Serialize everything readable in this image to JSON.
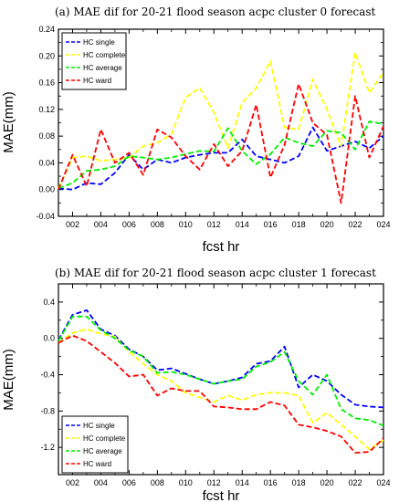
{
  "chart_data": [
    {
      "type": "line",
      "title": "(a) MAE dif for 20-21 flood season acpc cluster 0 forecast",
      "xlabel": "fcst hr",
      "ylabel": "MAE(mm)",
      "x": [
        1,
        2,
        3,
        4,
        5,
        6,
        7,
        8,
        9,
        10,
        11,
        12,
        13,
        14,
        15,
        16,
        17,
        18,
        19,
        20,
        21,
        22,
        23,
        24
      ],
      "xticks": [
        "002",
        "004",
        "006",
        "008",
        "010",
        "012",
        "014",
        "016",
        "018",
        "020",
        "022",
        "024"
      ],
      "ylim": [
        -0.04,
        0.24
      ],
      "yticks": [
        "-0.04",
        "0.00",
        "0.04",
        "0.08",
        "0.12",
        "0.16",
        "0.20",
        "0.24"
      ],
      "ytick_values": [
        -0.04,
        0.0,
        0.04,
        0.08,
        0.12,
        0.16,
        0.2,
        0.24
      ],
      "legend_position": "top-left",
      "series": [
        {
          "name": "HC single",
          "color": "#0000ff",
          "values": [
            0.002,
            0.0,
            0.01,
            0.008,
            0.025,
            0.052,
            0.03,
            0.045,
            0.04,
            0.048,
            0.052,
            0.055,
            0.055,
            0.075,
            0.05,
            0.045,
            0.04,
            0.05,
            0.093,
            0.058,
            0.065,
            0.072,
            0.062,
            0.08
          ]
        },
        {
          "name": "HC complete",
          "color": "#ffff00",
          "values": [
            0.002,
            0.048,
            0.05,
            0.043,
            0.045,
            0.048,
            0.065,
            0.07,
            0.083,
            0.138,
            0.152,
            0.115,
            0.062,
            0.13,
            0.152,
            0.192,
            0.093,
            0.09,
            0.165,
            0.12,
            0.065,
            0.205,
            0.145,
            0.175
          ]
        },
        {
          "name": "HC average",
          "color": "#00ee00",
          "values": [
            0.002,
            0.01,
            0.028,
            0.03,
            0.035,
            0.05,
            0.048,
            0.045,
            0.048,
            0.053,
            0.058,
            0.057,
            0.092,
            0.058,
            0.038,
            0.053,
            0.078,
            0.07,
            0.065,
            0.088,
            0.085,
            0.06,
            0.102,
            0.098
          ]
        },
        {
          "name": "HC ward",
          "color": "#ff0000",
          "values": [
            0.0,
            0.052,
            0.005,
            0.09,
            0.04,
            0.055,
            0.022,
            0.09,
            0.078,
            0.05,
            0.03,
            0.068,
            0.035,
            0.058,
            0.127,
            0.018,
            0.067,
            0.158,
            0.1,
            0.082,
            -0.02,
            0.14,
            0.048,
            0.095
          ]
        }
      ]
    },
    {
      "type": "line",
      "title": "(b) MAE dif for 20-21 flood season acpc cluster 1 forecast",
      "xlabel": "fcst hr",
      "ylabel": "MAE(mm)",
      "x": [
        1,
        2,
        3,
        4,
        5,
        6,
        7,
        8,
        9,
        10,
        11,
        12,
        13,
        14,
        15,
        16,
        17,
        18,
        19,
        20,
        21,
        22,
        23,
        24
      ],
      "xticks": [
        "002",
        "004",
        "006",
        "008",
        "010",
        "012",
        "014",
        "016",
        "018",
        "020",
        "022",
        "024"
      ],
      "ylim": [
        -1.5,
        0.6
      ],
      "yticks": [
        "-1.2",
        "-0.8",
        "-0.4",
        "0.0",
        "0.4"
      ],
      "ytick_values": [
        -1.2,
        -0.8,
        -0.4,
        0.0,
        0.4
      ],
      "legend_position": "bottom-left",
      "series": [
        {
          "name": "HC single",
          "color": "#0000ff",
          "values": [
            -0.02,
            0.26,
            0.31,
            0.1,
            0.03,
            -0.12,
            -0.2,
            -0.35,
            -0.33,
            -0.39,
            -0.45,
            -0.5,
            -0.47,
            -0.43,
            -0.28,
            -0.25,
            -0.09,
            -0.54,
            -0.4,
            -0.47,
            -0.62,
            -0.73,
            -0.75,
            -0.76
          ]
        },
        {
          "name": "HC complete",
          "color": "#ffff00",
          "values": [
            -0.05,
            0.06,
            0.1,
            0.05,
            0.02,
            -0.15,
            -0.28,
            -0.4,
            -0.47,
            -0.6,
            -0.65,
            -0.7,
            -0.63,
            -0.68,
            -0.62,
            -0.6,
            -0.6,
            -0.63,
            -0.93,
            -0.82,
            -0.95,
            -1.08,
            -1.22,
            -1.12
          ]
        },
        {
          "name": "HC average",
          "color": "#00ee00",
          "values": [
            -0.03,
            0.24,
            0.24,
            0.09,
            0.0,
            -0.13,
            -0.2,
            -0.38,
            -0.37,
            -0.4,
            -0.45,
            -0.5,
            -0.47,
            -0.45,
            -0.31,
            -0.26,
            -0.15,
            -0.47,
            -0.62,
            -0.4,
            -0.78,
            -0.88,
            -0.9,
            -0.96
          ]
        },
        {
          "name": "HC ward",
          "color": "#ff0000",
          "values": [
            -0.05,
            0.03,
            -0.03,
            -0.15,
            -0.27,
            -0.42,
            -0.4,
            -0.63,
            -0.55,
            -0.58,
            -0.58,
            -0.75,
            -0.76,
            -0.78,
            -0.78,
            -0.7,
            -0.74,
            -0.95,
            -0.98,
            -1.02,
            -1.08,
            -1.26,
            -1.25,
            -1.1
          ]
        }
      ]
    }
  ]
}
